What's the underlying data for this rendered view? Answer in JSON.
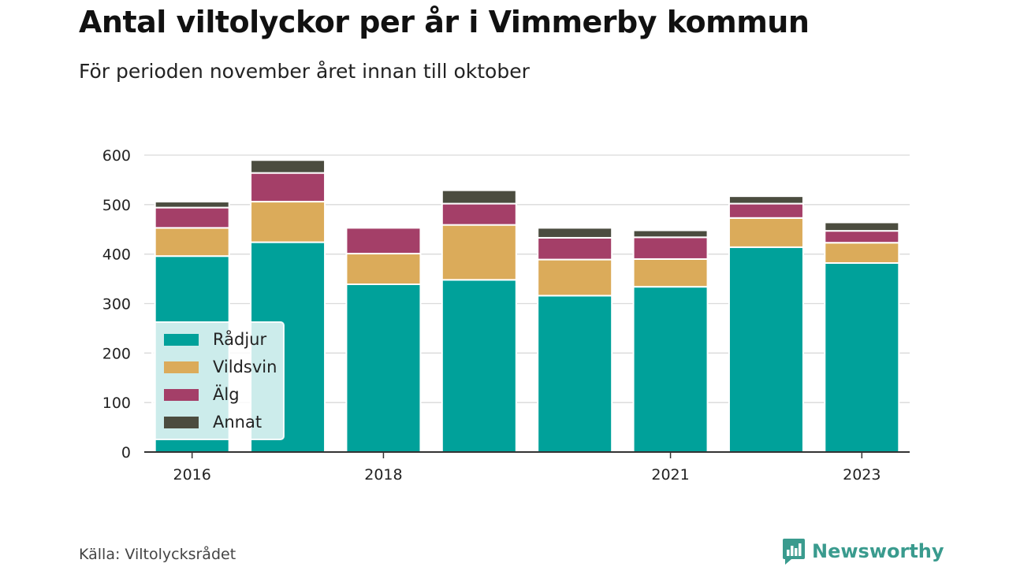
{
  "title": "Antal viltolyckor per år i Vimmerby kommun",
  "subtitle": "För perioden november året innan till oktober",
  "source": "Källa: Viltolycksrådet",
  "brand": {
    "name": "Newsworthy",
    "icon": "newsworthy-logo-icon",
    "color": "#3a9b8e"
  },
  "chart_data": {
    "type": "bar",
    "stacked": true,
    "categories": [
      "2016",
      "2017",
      "2018",
      "2019",
      "2020",
      "2021",
      "2022",
      "2023"
    ],
    "x_tick_labels": [
      "2016",
      "",
      "2018",
      "",
      "",
      "2021",
      "",
      "2023"
    ],
    "series": [
      {
        "name": "Rådjur",
        "color": "#00a19a",
        "values": [
          396,
          424,
          339,
          348,
          316,
          334,
          414,
          382
        ]
      },
      {
        "name": "Vildsvin",
        "color": "#dbab5a",
        "values": [
          57,
          82,
          62,
          111,
          73,
          56,
          59,
          41
        ]
      },
      {
        "name": "Älg",
        "color": "#a43f68",
        "values": [
          41,
          58,
          52,
          43,
          44,
          44,
          29,
          24
        ]
      },
      {
        "name": "Annat",
        "color": "#4b4c3f",
        "values": [
          12,
          26,
          0,
          27,
          20,
          14,
          15,
          17
        ]
      }
    ],
    "ylim": [
      0,
      600
    ],
    "yticks": [
      0,
      100,
      200,
      300,
      400,
      500,
      600
    ],
    "grid": true,
    "legend_position": "bottom-left"
  }
}
